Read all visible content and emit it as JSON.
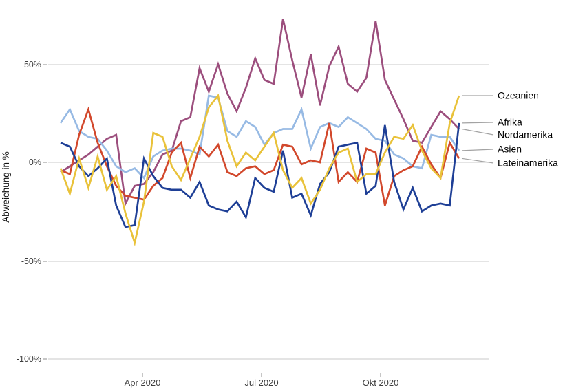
{
  "chart_data": {
    "type": "line",
    "title": "",
    "ylabel": "Abweichung in %",
    "unit": "%",
    "grid": "horizontal",
    "legend_position": "right-direct-labels",
    "x_axis": {
      "tick_labels": [
        "Apr 2020",
        "Jul 2020",
        "Okt 2020"
      ],
      "range_note": "weekly points, Feb 2020 - Nov 2020"
    },
    "y_axis": {
      "tick_labels": [
        "50%",
        "0%",
        "-50%",
        "-100%"
      ],
      "tick_values": [
        50,
        0,
        -50,
        -100
      ],
      "range": [
        -105,
        78
      ]
    },
    "colors": {
      "gridline": "#c9c9c9",
      "leader_line": "#a3a3a3",
      "tick_text": "#3d3d3d",
      "label_text": "#000000"
    },
    "series": [
      {
        "name": "Ozeanien",
        "color": "#e9c23a",
        "values": [
          -3,
          -16,
          2,
          -13,
          3,
          -14,
          -7,
          -26,
          -41,
          -20,
          15,
          13,
          -2,
          -9,
          2,
          13,
          28,
          34,
          11,
          -2,
          5,
          1,
          8,
          15,
          -4,
          -13,
          -8,
          -21,
          -14,
          -3,
          5,
          7,
          -10,
          -6,
          -6,
          5,
          13,
          12,
          19,
          6,
          -3,
          -8,
          20,
          34
        ]
      },
      {
        "name": "Afrika",
        "color": "#1e3f96",
        "values": [
          10,
          8,
          -2,
          -7,
          -3,
          2,
          -22,
          -33,
          -32,
          2,
          -7,
          -13,
          -14,
          -14,
          -18,
          -10,
          -22,
          -24,
          -25,
          -20,
          -28,
          -8,
          -13,
          -15,
          6,
          -18,
          -16,
          -27,
          -11,
          -5,
          8,
          9,
          10,
          -16,
          -12,
          19,
          -10,
          -24,
          -13,
          -25,
          -22,
          -21,
          -22,
          20
        ]
      },
      {
        "name": "Nordamerika",
        "color": "#9c4e7d",
        "values": [
          -5,
          -2,
          1,
          4,
          8,
          12,
          14,
          -21,
          -12,
          -11,
          -5,
          4,
          6,
          21,
          23,
          48,
          36,
          50,
          35,
          26,
          38,
          53,
          42,
          40,
          73,
          52,
          33,
          55,
          29,
          49,
          59,
          40,
          36,
          43,
          72,
          42,
          32,
          22,
          11,
          10,
          18,
          26,
          22,
          17
        ]
      },
      {
        "name": "Asien",
        "color": "#97bae4",
        "values": [
          20,
          27,
          16,
          13,
          12,
          6,
          -2,
          -5,
          -3,
          -8,
          3,
          6,
          7,
          7,
          6,
          4,
          34,
          33,
          16,
          13,
          21,
          18,
          9,
          15,
          17,
          17,
          27,
          7,
          18,
          20,
          18,
          23,
          20,
          17,
          12,
          11,
          4,
          2,
          -2,
          -3,
          14,
          13,
          13,
          6
        ]
      },
      {
        "name": "Lateinamerika",
        "color": "#d2482c",
        "values": [
          -4,
          -6,
          14,
          27,
          10,
          -2,
          -12,
          -17,
          -18,
          -19,
          -12,
          -8,
          5,
          10,
          -8,
          8,
          3,
          9,
          -5,
          -7,
          -3,
          -2,
          -6,
          -4,
          9,
          8,
          -1,
          1,
          0,
          20,
          -10,
          -5,
          -10,
          7,
          5,
          -22,
          -7,
          -4,
          -2,
          8,
          -1,
          -8,
          10,
          2
        ]
      }
    ]
  }
}
